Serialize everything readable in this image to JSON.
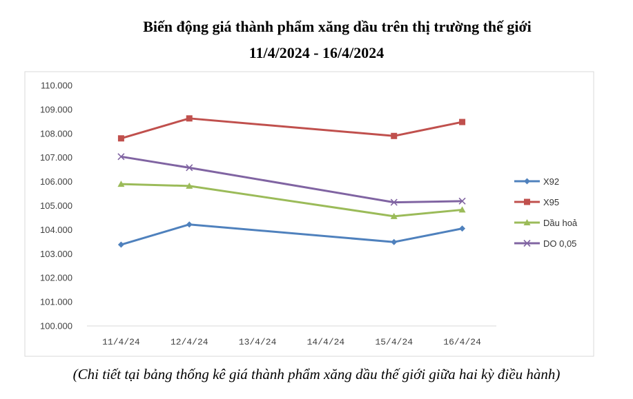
{
  "title": "Biến động giá thành phẩm xăng dầu trên thị trường thế giới",
  "subtitle": "11/4/2024 - 16/4/2024",
  "caption": "(Chi tiết tại bảng thống kê giá thành phẩm xăng dầu thế giới giữa hai kỳ điều hành)",
  "chart_data": {
    "type": "line",
    "title": "Biến động giá thành phẩm xăng dầu trên thị trường thế giới",
    "subtitle": "11/4/2024 - 16/4/2024",
    "categories": [
      "11/4/24",
      "12/4/24",
      "13/4/24",
      "14/4/24",
      "15/4/24",
      "16/4/24"
    ],
    "ylim": [
      100000,
      110000
    ],
    "yticks": [
      "100.000",
      "101.000",
      "102.000",
      "103.000",
      "104.000",
      "105.000",
      "106.000",
      "107.000",
      "108.000",
      "109.000",
      "110.000"
    ],
    "grid": false,
    "legend_position": "right",
    "series": [
      {
        "name": "X92",
        "color": "#4F81BD",
        "marker": "diamond",
        "values": [
          103380,
          104220,
          null,
          null,
          103490,
          104050
        ]
      },
      {
        "name": "X95",
        "color": "#C0504D",
        "marker": "square",
        "values": [
          107800,
          108630,
          null,
          null,
          107900,
          108480
        ]
      },
      {
        "name": "Dầu hoả",
        "color": "#9BBB59",
        "marker": "triangle",
        "values": [
          105900,
          105820,
          null,
          null,
          104560,
          104830
        ]
      },
      {
        "name": "DO 0,05",
        "color": "#8064A2",
        "marker": "x",
        "values": [
          107040,
          106580,
          null,
          null,
          105140,
          105190
        ]
      }
    ]
  }
}
